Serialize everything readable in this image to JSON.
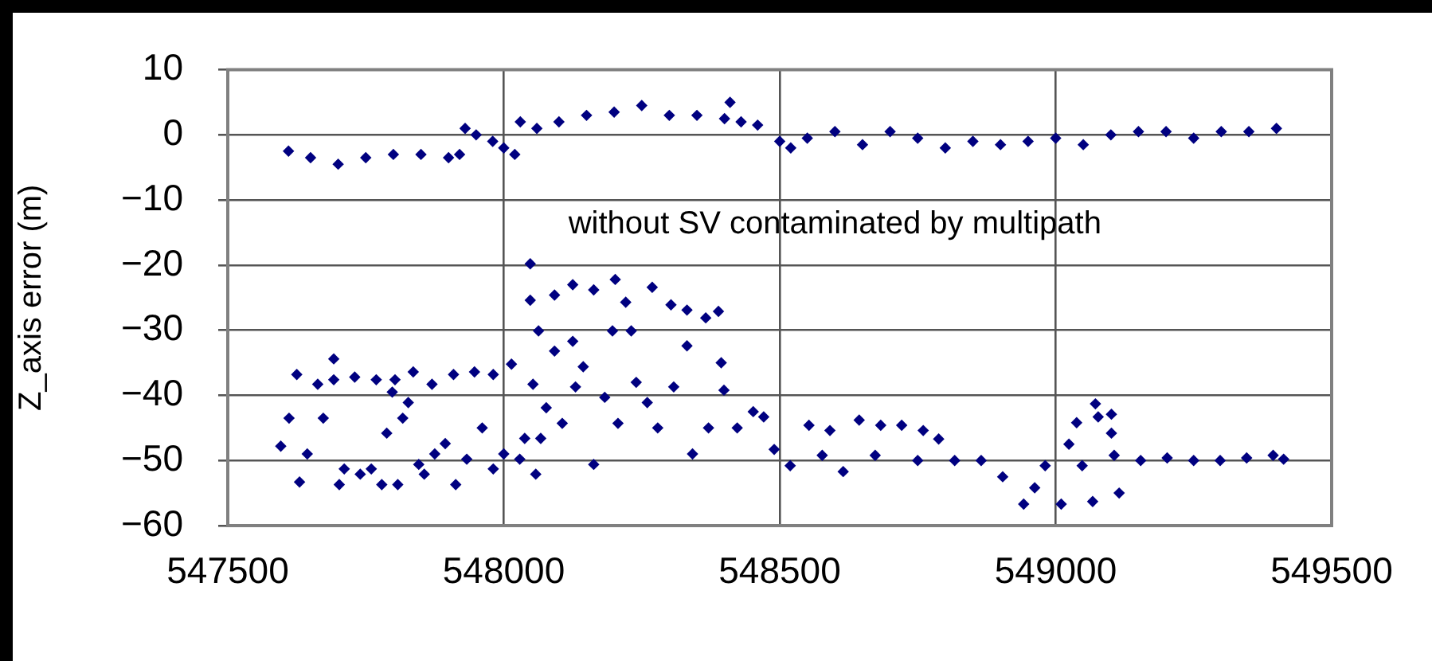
{
  "chart_data": {
    "type": "scatter",
    "ylabel": "Z_axis error (m)",
    "annotations": [
      "without SV contaminated by multipath"
    ],
    "xlim": [
      547500,
      549500
    ],
    "xticks": [
      547500,
      548000,
      548500,
      549000,
      549500
    ],
    "ylim": [
      -60,
      10
    ],
    "yticks": [
      -60,
      -50,
      -40,
      -30,
      -20,
      -10,
      0,
      10
    ],
    "grid": true,
    "marker": "diamond",
    "legend": false,
    "series": [
      {
        "color": "#000080",
        "x": [
          547610,
          547650,
          547700,
          547750,
          547800,
          547850,
          547900,
          547920,
          547930,
          547950,
          547980,
          548000,
          548020,
          548030,
          548060,
          548100,
          548150,
          548200,
          548250,
          548300,
          548350,
          548400,
          548410,
          548430,
          548460,
          548500,
          548520,
          548550,
          548600,
          548650,
          548700,
          548750,
          548800,
          548850,
          548900,
          548950,
          549000,
          549050,
          549100,
          549150,
          549200,
          549250,
          549300,
          549350,
          549400
        ],
        "values": [
          -2.5,
          -3.5,
          -4.5,
          -3.5,
          -3,
          -3,
          -3.5,
          -3,
          1,
          0,
          -1,
          -2,
          -3,
          2,
          1,
          2,
          3,
          3.5,
          4.5,
          3,
          3,
          2.5,
          5,
          2,
          1.5,
          -1,
          -2,
          -0.5,
          0.5,
          -1.5,
          0.5,
          -0.5,
          -2,
          -1,
          -1.5,
          -1,
          -0.5,
          -1.5,
          0,
          0.5,
          0.5,
          -0.5,
          0.5,
          0.5,
          1
        ]
      },
      {
        "color": "#000080",
        "x": [
          547596,
          547611,
          547625,
          547630,
          547644,
          547663,
          547673,
          547692,
          547692,
          547702,
          547711,
          547730,
          547740,
          547760,
          547769,
          547779,
          547788,
          547798,
          547803,
          547808,
          547817,
          547827,
          547836,
          547846,
          547856,
          547870,
          547875,
          547894,
          547909,
          547913,
          547933,
          547947,
          547961,
          547981,
          547981,
          548000,
          548014,
          548029,
          548038,
          548048,
          548048,
          548053,
          548058,
          548063,
          548067,
          548077,
          548092,
          548092,
          548106,
          548125,
          548125,
          548130,
          548144,
          548163,
          548163,
          548183,
          548197,
          548202,
          548207,
          548221,
          548231,
          548240,
          548260,
          548269,
          548279,
          548303,
          548308,
          548332,
          548332,
          548342,
          548366,
          548371,
          548389,
          548394,
          548399,
          548423,
          548452,
          548471,
          548490,
          548519,
          548553,
          548577,
          548591,
          548615,
          548644,
          548673,
          548683,
          548721,
          548750,
          548760,
          548788,
          548817,
          548865,
          548904,
          548942,
          548962,
          548981,
          549010,
          549024,
          549038,
          549048,
          549067,
          549072,
          549077,
          549101,
          549101,
          549106,
          549115,
          549154,
          549202,
          549250,
          549298,
          549346,
          549394,
          549413
        ],
        "values": [
          -47.8,
          -43.5,
          -36.8,
          -53.3,
          -49,
          -38.3,
          -43.5,
          -34.4,
          -37.6,
          -53.7,
          -51.3,
          -37.2,
          -52.1,
          -51.3,
          -37.6,
          -53.7,
          -45.8,
          -39.5,
          -37.6,
          -53.7,
          -43.5,
          -41.1,
          -36.4,
          -50.6,
          -52.1,
          -38.3,
          -49,
          -47.4,
          -36.8,
          -53.7,
          -49.8,
          -36.4,
          -45,
          -36.8,
          -51.3,
          -49,
          -35.2,
          -49.8,
          -46.6,
          -19.8,
          -25.4,
          -38.3,
          -52.1,
          -30.1,
          -46.6,
          -41.9,
          -24.6,
          -33.2,
          -44.3,
          -23,
          -31.7,
          -38.7,
          -35.6,
          -23.8,
          -50.6,
          -40.3,
          -30.1,
          -22.2,
          -44.3,
          -25.7,
          -30.1,
          -38,
          -41.1,
          -23.4,
          -45,
          -26.1,
          -38.7,
          -26.9,
          -32.4,
          -49,
          -28.1,
          -45,
          -27.1,
          -35,
          -39.2,
          -45,
          -42.5,
          -43.3,
          -48.3,
          -50.8,
          -44.6,
          -49.2,
          -45.4,
          -51.7,
          -43.8,
          -49.2,
          -44.6,
          -44.6,
          -50,
          -45.4,
          -46.7,
          -50,
          -50,
          -52.5,
          -56.7,
          -54.2,
          -50.8,
          -56.7,
          -47.5,
          -44.2,
          -50.8,
          -56.3,
          -41.3,
          -43.3,
          -42.9,
          -45.8,
          -49.2,
          -55,
          -50,
          -49.6,
          -50,
          -50,
          -49.6,
          -49.2,
          -49.8
        ]
      }
    ]
  }
}
